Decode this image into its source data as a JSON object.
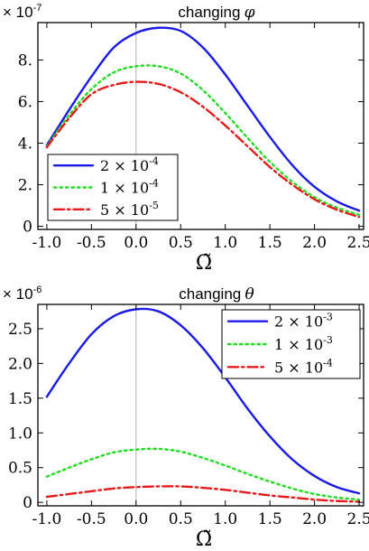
{
  "chart_data": [
    {
      "type": "line",
      "title": "changing",
      "title_symbol": "φ",
      "multiplier_label": "× 10",
      "multiplier_exp": "-7",
      "xlabel": "Ω̃",
      "xlim": [
        -1.1,
        2.55
      ],
      "ylim": [
        -0.15,
        9.8
      ],
      "xticks": [
        -1.0,
        -0.5,
        0.0,
        0.5,
        1.0,
        1.5,
        2.0,
        2.5
      ],
      "xtick_labels": [
        "-1.0",
        "-0.5",
        "0.0",
        "0.5",
        "1.0",
        "1.5",
        "2.0",
        "2.5"
      ],
      "yticks": [
        0,
        2,
        4,
        6,
        8
      ],
      "ytick_labels": [
        "0",
        "2.",
        "4.",
        "6.",
        "8."
      ],
      "vline_x": 0.0,
      "legend_position": "bottom-left",
      "x": [
        -1.0,
        -0.75,
        -0.5,
        -0.25,
        0.0,
        0.25,
        0.5,
        0.75,
        1.0,
        1.25,
        1.5,
        1.75,
        2.0,
        2.25,
        2.5
      ],
      "series": [
        {
          "name_base": "2 × 10",
          "name_exp": "-4",
          "color": "#1a1ae6",
          "dash": "solid",
          "values": [
            3.9,
            5.6,
            7.2,
            8.6,
            9.3,
            9.55,
            9.4,
            8.6,
            7.3,
            5.8,
            4.3,
            2.95,
            1.9,
            1.2,
            0.75
          ]
        },
        {
          "name_base": "1 × 10",
          "name_exp": "-4",
          "color": "#22dd22",
          "dash": "dotted",
          "values": [
            3.85,
            5.35,
            6.6,
            7.4,
            7.7,
            7.7,
            7.35,
            6.55,
            5.45,
            4.25,
            3.1,
            2.15,
            1.4,
            0.9,
            0.55
          ]
        },
        {
          "name_base": "5 × 10",
          "name_exp": "-5",
          "color": "#e61a1a",
          "dash": "dashdot",
          "values": [
            3.8,
            5.2,
            6.35,
            6.8,
            6.95,
            6.85,
            6.45,
            5.75,
            4.85,
            3.85,
            2.85,
            2.0,
            1.3,
            0.8,
            0.45
          ]
        }
      ]
    },
    {
      "type": "line",
      "title": "changing",
      "title_symbol": "θ",
      "multiplier_label": "× 10",
      "multiplier_exp": "-6",
      "xlabel": "Ω̃",
      "xlim": [
        -1.1,
        2.55
      ],
      "ylim": [
        -0.05,
        2.85
      ],
      "xticks": [
        -1.0,
        -0.5,
        0.0,
        0.5,
        1.0,
        1.5,
        2.0,
        2.5
      ],
      "xtick_labels": [
        "-1.0",
        "-0.5",
        "0.0",
        "0.5",
        "1.0",
        "1.5",
        "2.0",
        "2.5"
      ],
      "yticks": [
        0,
        0.5,
        1.0,
        1.5,
        2.0,
        2.5
      ],
      "ytick_labels": [
        "0",
        "0.5",
        "1.0",
        "1.5",
        "2.0",
        "2.5"
      ],
      "vline_x": 0.0,
      "legend_position": "top-right",
      "x": [
        -1.0,
        -0.75,
        -0.5,
        -0.25,
        0.0,
        0.25,
        0.5,
        0.75,
        1.0,
        1.25,
        1.5,
        1.75,
        2.0,
        2.25,
        2.5
      ],
      "series": [
        {
          "name_base": "2 × 10",
          "name_exp": "-3",
          "color": "#1a1ae6",
          "dash": "solid",
          "values": [
            1.52,
            2.0,
            2.42,
            2.68,
            2.78,
            2.75,
            2.55,
            2.22,
            1.8,
            1.35,
            0.95,
            0.62,
            0.38,
            0.22,
            0.13
          ]
        },
        {
          "name_base": "1 × 10",
          "name_exp": "-3",
          "color": "#22dd22",
          "dash": "dotted",
          "values": [
            0.37,
            0.5,
            0.62,
            0.72,
            0.76,
            0.77,
            0.73,
            0.64,
            0.53,
            0.41,
            0.3,
            0.2,
            0.12,
            0.07,
            0.04
          ]
        },
        {
          "name_base": "5 × 10",
          "name_exp": "-4",
          "color": "#e61a1a",
          "dash": "dashdot",
          "values": [
            0.08,
            0.12,
            0.16,
            0.2,
            0.22,
            0.23,
            0.23,
            0.21,
            0.18,
            0.14,
            0.1,
            0.07,
            0.04,
            0.02,
            0.01
          ]
        }
      ]
    }
  ]
}
